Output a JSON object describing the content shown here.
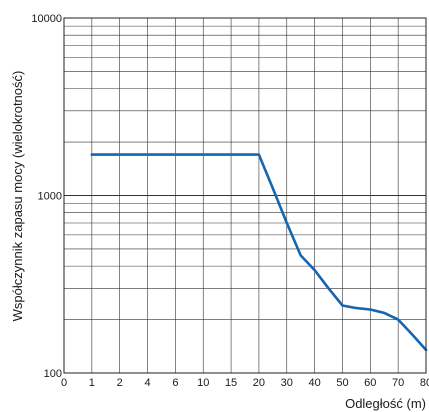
{
  "chart_data": {
    "type": "line",
    "title": "",
    "xlabel": "Odległość (m)",
    "ylabel": "Współczynnik zapasu mocy (wielokrotność)",
    "y_scale": "log",
    "ylim": [
      100,
      10000
    ],
    "y_ticks": [
      {
        "value": 100,
        "label": "100"
      },
      {
        "value": 1000,
        "label": "1000"
      },
      {
        "value": 10000,
        "label": "10000"
      }
    ],
    "x_ticks": [
      "0",
      "1",
      "2",
      "4",
      "6",
      "10",
      "15",
      "20",
      "30",
      "40",
      "50",
      "60",
      "70",
      "80"
    ],
    "grid": true,
    "series": [
      {
        "color": "#1565b0",
        "points": [
          {
            "x": "1",
            "y": 1700
          },
          {
            "x": "20",
            "y": 1700
          },
          {
            "x": "25",
            "y": 1100
          },
          {
            "x": "30",
            "y": 700
          },
          {
            "x": "35",
            "y": 460
          },
          {
            "x": "40",
            "y": 380
          },
          {
            "x": "45",
            "y": 300
          },
          {
            "x": "50",
            "y": 240
          },
          {
            "x": "55",
            "y": 232
          },
          {
            "x": "60",
            "y": 228
          },
          {
            "x": "65",
            "y": 218
          },
          {
            "x": "70",
            "y": 200
          },
          {
            "x": "75",
            "y": 165
          },
          {
            "x": "80",
            "y": 135
          }
        ]
      }
    ]
  }
}
